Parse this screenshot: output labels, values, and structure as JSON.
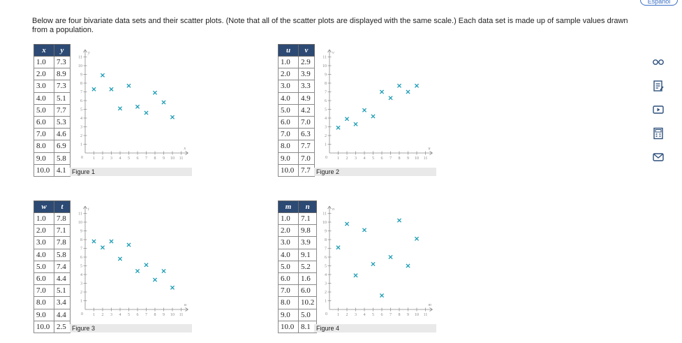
{
  "language_button": "Español",
  "intro_text": "Below are four bivariate data sets and their scatter plots. (Note that all of the scatter plots are displayed with the same scale.) Each data set is made up of sample values drawn from a population.",
  "tools": [
    "glasses-icon",
    "notes-icon",
    "video-icon",
    "calculator-icon",
    "mail-icon"
  ],
  "chart_data": [
    {
      "type": "scatter",
      "caption": "Figure 1",
      "xlabel": "x",
      "ylabel": "y",
      "xlim": [
        0,
        11
      ],
      "ylim": [
        0,
        11
      ],
      "color": "#1a9bb4",
      "x": [
        1.0,
        2.0,
        3.0,
        4.0,
        5.0,
        6.0,
        7.0,
        8.0,
        9.0,
        10.0
      ],
      "y": [
        7.3,
        8.9,
        7.3,
        5.1,
        7.7,
        5.3,
        4.6,
        6.9,
        5.8,
        4.1
      ],
      "table": [
        [
          "1.0",
          "7.3"
        ],
        [
          "2.0",
          "8.9"
        ],
        [
          "3.0",
          "7.3"
        ],
        [
          "4.0",
          "5.1"
        ],
        [
          "5.0",
          "7.7"
        ],
        [
          "6.0",
          "5.3"
        ],
        [
          "7.0",
          "4.6"
        ],
        [
          "8.0",
          "6.9"
        ],
        [
          "9.0",
          "5.8"
        ],
        [
          "10.0",
          "4.1"
        ]
      ]
    },
    {
      "type": "scatter",
      "caption": "Figure 2",
      "xlabel": "u",
      "ylabel": "v",
      "xlim": [
        0,
        11
      ],
      "ylim": [
        0,
        11
      ],
      "color": "#1a9bb4",
      "x": [
        1.0,
        2.0,
        3.0,
        4.0,
        5.0,
        6.0,
        7.0,
        8.0,
        9.0,
        10.0
      ],
      "y": [
        2.9,
        3.9,
        3.3,
        4.9,
        4.2,
        7.0,
        6.3,
        7.7,
        7.0,
        7.7
      ],
      "table": [
        [
          "1.0",
          "2.9"
        ],
        [
          "2.0",
          "3.9"
        ],
        [
          "3.0",
          "3.3"
        ],
        [
          "4.0",
          "4.9"
        ],
        [
          "5.0",
          "4.2"
        ],
        [
          "6.0",
          "7.0"
        ],
        [
          "7.0",
          "6.3"
        ],
        [
          "8.0",
          "7.7"
        ],
        [
          "9.0",
          "7.0"
        ],
        [
          "10.0",
          "7.7"
        ]
      ]
    },
    {
      "type": "scatter",
      "caption": "Figure 3",
      "xlabel": "w",
      "ylabel": "t",
      "xlim": [
        0,
        11
      ],
      "ylim": [
        0,
        11
      ],
      "color": "#1a9bb4",
      "x": [
        1.0,
        2.0,
        3.0,
        4.0,
        5.0,
        6.0,
        7.0,
        8.0,
        9.0,
        10.0
      ],
      "y": [
        7.8,
        7.1,
        7.8,
        5.8,
        7.4,
        4.4,
        5.1,
        3.4,
        4.4,
        2.5
      ],
      "table": [
        [
          "1.0",
          "7.8"
        ],
        [
          "2.0",
          "7.1"
        ],
        [
          "3.0",
          "7.8"
        ],
        [
          "4.0",
          "5.8"
        ],
        [
          "5.0",
          "7.4"
        ],
        [
          "6.0",
          "4.4"
        ],
        [
          "7.0",
          "5.1"
        ],
        [
          "8.0",
          "3.4"
        ],
        [
          "9.0",
          "4.4"
        ],
        [
          "10.0",
          "2.5"
        ]
      ]
    },
    {
      "type": "scatter",
      "caption": "Figure 4",
      "xlabel": "m",
      "ylabel": "n",
      "xlim": [
        0,
        11
      ],
      "ylim": [
        0,
        11
      ],
      "color": "#1a9bb4",
      "x": [
        1.0,
        2.0,
        3.0,
        4.0,
        5.0,
        6.0,
        7.0,
        8.0,
        9.0,
        10.0
      ],
      "y": [
        7.1,
        9.8,
        3.9,
        9.1,
        5.2,
        1.6,
        6.0,
        10.2,
        5.0,
        8.1
      ],
      "table": [
        [
          "1.0",
          "7.1"
        ],
        [
          "2.0",
          "9.8"
        ],
        [
          "3.0",
          "3.9"
        ],
        [
          "4.0",
          "9.1"
        ],
        [
          "5.0",
          "5.2"
        ],
        [
          "6.0",
          "1.6"
        ],
        [
          "7.0",
          "6.0"
        ],
        [
          "8.0",
          "10.2"
        ],
        [
          "9.0",
          "5.0"
        ],
        [
          "10.0",
          "8.1"
        ]
      ]
    }
  ]
}
